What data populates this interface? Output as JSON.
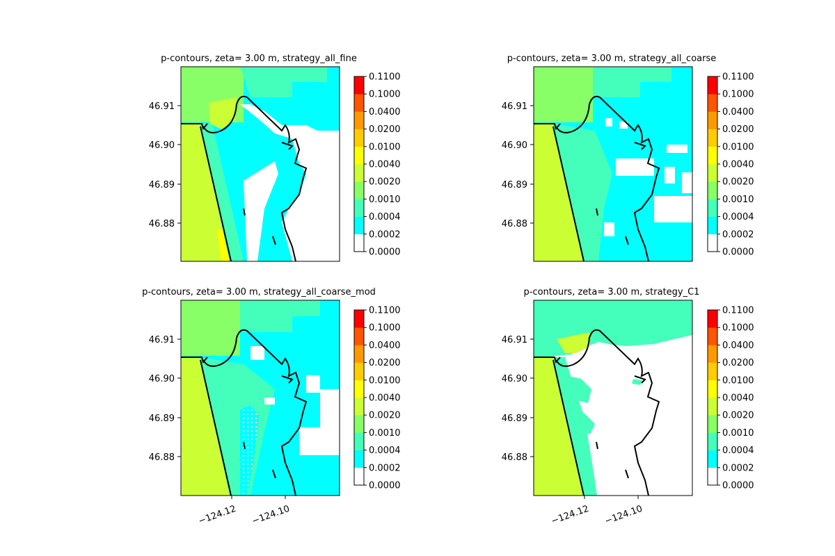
{
  "chart_data": [
    {
      "type": "heatmap",
      "title": "p-contours, zeta= 3.00 m, strategy_all_fine",
      "strategy": "strategy_all_fine",
      "x_ticks": [],
      "y_ticks": [
        "46.91",
        "46.90",
        "46.89",
        "46.88"
      ],
      "colorbar_ticks": [
        "0.0000",
        "0.0002",
        "0.0004",
        "0.0010",
        "0.0020",
        "0.0040",
        "0.0100",
        "0.0200",
        "0.0400",
        "0.1000",
        "0.1100"
      ]
    },
    {
      "type": "heatmap",
      "title": "p-contours, zeta= 3.00 m, strategy_all_coarse",
      "strategy": "strategy_all_coarse",
      "x_ticks": [],
      "y_ticks": [
        "46.91",
        "46.90",
        "46.89",
        "46.88"
      ],
      "colorbar_ticks": [
        "0.0000",
        "0.0002",
        "0.0004",
        "0.0010",
        "0.0020",
        "0.0040",
        "0.0100",
        "0.0200",
        "0.0400",
        "0.1000",
        "0.1100"
      ]
    },
    {
      "type": "heatmap",
      "title": "p-contours, zeta= 3.00 m, strategy_all_coarse_mod",
      "strategy": "strategy_all_coarse_mod",
      "x_ticks": [
        "−124.12",
        "−124.10"
      ],
      "y_ticks": [
        "46.91",
        "46.90",
        "46.89",
        "46.88"
      ],
      "colorbar_ticks": [
        "0.0000",
        "0.0002",
        "0.0004",
        "0.0010",
        "0.0020",
        "0.0040",
        "0.0100",
        "0.0200",
        "0.0400",
        "0.1000",
        "0.1100"
      ]
    },
    {
      "type": "heatmap",
      "title": "p-contours, zeta= 3.00 m, strategy_C1",
      "strategy": "strategy_C1",
      "x_ticks": [
        "−124.12",
        "−124.10"
      ],
      "y_ticks": [
        "46.91",
        "46.90",
        "46.89",
        "46.88"
      ],
      "colorbar_ticks": [
        "0.0000",
        "0.0002",
        "0.0004",
        "0.0010",
        "0.0020",
        "0.0040",
        "0.0100",
        "0.0200",
        "0.0400",
        "0.1000",
        "0.1100"
      ]
    }
  ],
  "colorbar_colors": [
    "#ffffff",
    "#00ffff",
    "#44ffbb",
    "#88ff66",
    "#ccff33",
    "#ffff00",
    "#ffcc00",
    "#ff9900",
    "#ff5500",
    "#ff0000"
  ]
}
